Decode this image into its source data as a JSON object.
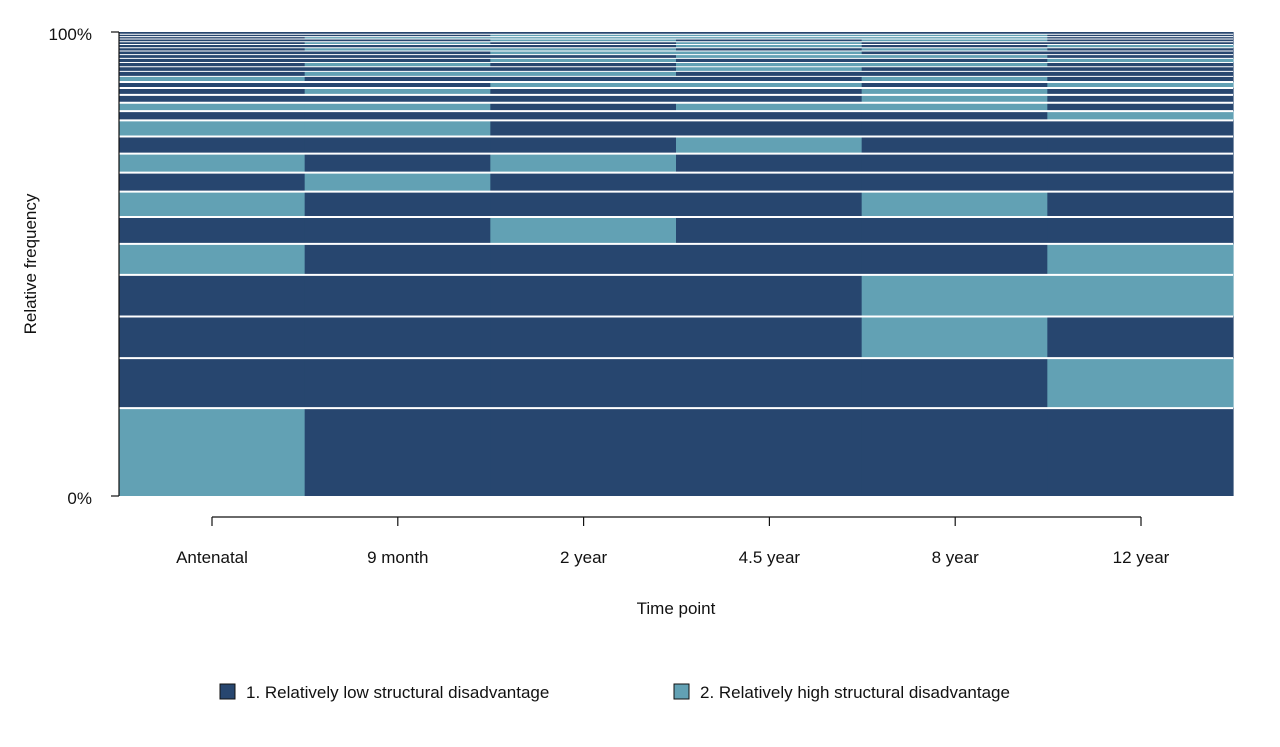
{
  "colors": {
    "low": "#27466f",
    "high": "#62a1b4",
    "separator": "#ffffff",
    "axis": "#111111"
  },
  "chart_data": {
    "type": "sequence-index",
    "title": "",
    "xlabel": "Time point",
    "ylabel": "Relative frequency",
    "y_ticks": [
      "0%",
      "100%"
    ],
    "ylim": [
      0,
      1
    ],
    "categories": [
      "Antenatal",
      "9 month",
      "2 year",
      "4.5 year",
      "8 year",
      "12 year"
    ],
    "legend": {
      "placement": "bottom",
      "entries": [
        {
          "key": "low",
          "label": "1. Relatively low structural disadvantage"
        },
        {
          "key": "high",
          "label": "2. Relatively high structural disadvantage"
        }
      ]
    },
    "sequences": [
      {
        "freq": 0.19,
        "states": [
          "high",
          "low",
          "low",
          "low",
          "low",
          "low"
        ]
      },
      {
        "freq": 0.108,
        "states": [
          "low",
          "low",
          "low",
          "low",
          "low",
          "high"
        ]
      },
      {
        "freq": 0.09,
        "states": [
          "low",
          "low",
          "low",
          "low",
          "high",
          "low"
        ]
      },
      {
        "freq": 0.09,
        "states": [
          "low",
          "low",
          "low",
          "low",
          "high",
          "high"
        ]
      },
      {
        "freq": 0.067,
        "states": [
          "high",
          "low",
          "low",
          "low",
          "low",
          "high"
        ]
      },
      {
        "freq": 0.058,
        "states": [
          "low",
          "low",
          "high",
          "low",
          "low",
          "low"
        ]
      },
      {
        "freq": 0.055,
        "states": [
          "high",
          "low",
          "low",
          "low",
          "high",
          "low"
        ]
      },
      {
        "freq": 0.041,
        "states": [
          "low",
          "high",
          "low",
          "low",
          "low",
          "low"
        ]
      },
      {
        "freq": 0.041,
        "states": [
          "high",
          "low",
          "high",
          "low",
          "low",
          "low"
        ]
      },
      {
        "freq": 0.037,
        "states": [
          "low",
          "low",
          "low",
          "high",
          "low",
          "low"
        ]
      },
      {
        "freq": 0.035,
        "states": [
          "high",
          "high",
          "low",
          "low",
          "low",
          "low"
        ]
      },
      {
        "freq": 0.02,
        "states": [
          "low",
          "low",
          "low",
          "low",
          "low",
          "high"
        ]
      },
      {
        "freq": 0.018,
        "states": [
          "high",
          "high",
          "low",
          "high",
          "high",
          "low"
        ]
      },
      {
        "freq": 0.017,
        "states": [
          "low",
          "low",
          "low",
          "low",
          "high",
          "low"
        ]
      },
      {
        "freq": 0.015,
        "states": [
          "low",
          "high",
          "low",
          "low",
          "high",
          "low"
        ]
      },
      {
        "freq": 0.013,
        "states": [
          "low",
          "low",
          "high",
          "high",
          "low",
          "high"
        ]
      },
      {
        "freq": 0.012,
        "states": [
          "high",
          "low",
          "low",
          "low",
          "high",
          "low"
        ]
      },
      {
        "freq": 0.011,
        "states": [
          "low",
          "high",
          "high",
          "low",
          "low",
          "low"
        ]
      },
      {
        "freq": 0.01,
        "states": [
          "low",
          "low",
          "low",
          "high",
          "low",
          "low"
        ]
      },
      {
        "freq": 0.009,
        "states": [
          "low",
          "high",
          "low",
          "high",
          "high",
          "low"
        ]
      },
      {
        "freq": 0.009,
        "states": [
          "low",
          "low",
          "high",
          "low",
          "low",
          "high"
        ]
      },
      {
        "freq": 0.008,
        "states": [
          "low",
          "low",
          "low",
          "high",
          "high",
          "low"
        ]
      },
      {
        "freq": 0.008,
        "states": [
          "low",
          "low",
          "high",
          "high",
          "low",
          "low"
        ]
      },
      {
        "freq": 0.007,
        "states": [
          "low",
          "high",
          "high",
          "low",
          "high",
          "low"
        ]
      },
      {
        "freq": 0.007,
        "states": [
          "low",
          "low",
          "low",
          "high",
          "low",
          "high"
        ]
      },
      {
        "freq": 0.006,
        "states": [
          "low",
          "high",
          "low",
          "high",
          "low",
          "low"
        ]
      },
      {
        "freq": 0.006,
        "states": [
          "low",
          "low",
          "high",
          "low",
          "high",
          "low"
        ]
      },
      {
        "freq": 0.005,
        "states": [
          "low",
          "high",
          "high",
          "high",
          "high",
          "low"
        ]
      },
      {
        "freq": 0.005,
        "states": [
          "low",
          "low",
          "high",
          "high",
          "high",
          "low"
        ]
      },
      {
        "freq": 0.005,
        "states": [
          "low",
          "low",
          "low",
          "low",
          "low",
          "low"
        ]
      }
    ]
  }
}
